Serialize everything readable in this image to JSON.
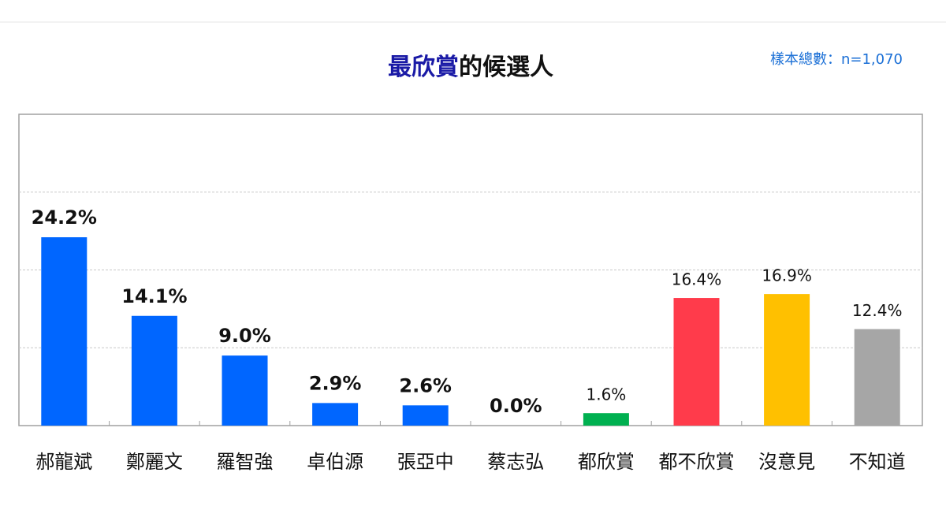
{
  "chart_data": {
    "type": "bar",
    "title_highlight": "最欣賞",
    "title_rest": "的候選人",
    "title_highlight_color": "#1a1aa6",
    "sample_note": "樣本總數：n=1,070",
    "categories": [
      "郝龍斌",
      "鄭麗文",
      "羅智強",
      "卓伯源",
      "張亞中",
      "蔡志弘",
      "都欣賞",
      "都不欣賞",
      "沒意見",
      "不知道"
    ],
    "values": [
      24.2,
      14.1,
      9.0,
      2.9,
      2.6,
      0.0,
      1.6,
      16.4,
      16.9,
      12.4
    ],
    "value_labels": [
      "24.2%",
      "14.1%",
      "9.0%",
      "2.9%",
      "2.6%",
      "0.0%",
      "1.6%",
      "16.4%",
      "16.9%",
      "12.4%"
    ],
    "label_bold": [
      true,
      true,
      true,
      true,
      true,
      true,
      false,
      false,
      false,
      false
    ],
    "colors": [
      "#0066ff",
      "#0066ff",
      "#0066ff",
      "#0066ff",
      "#0066ff",
      "#0066ff",
      "#00b050",
      "#ff3b4b",
      "#ffc000",
      "#a6a6a6"
    ],
    "ylim": [
      0,
      40
    ],
    "gridlines": [
      10,
      20,
      30
    ],
    "grid": true
  }
}
